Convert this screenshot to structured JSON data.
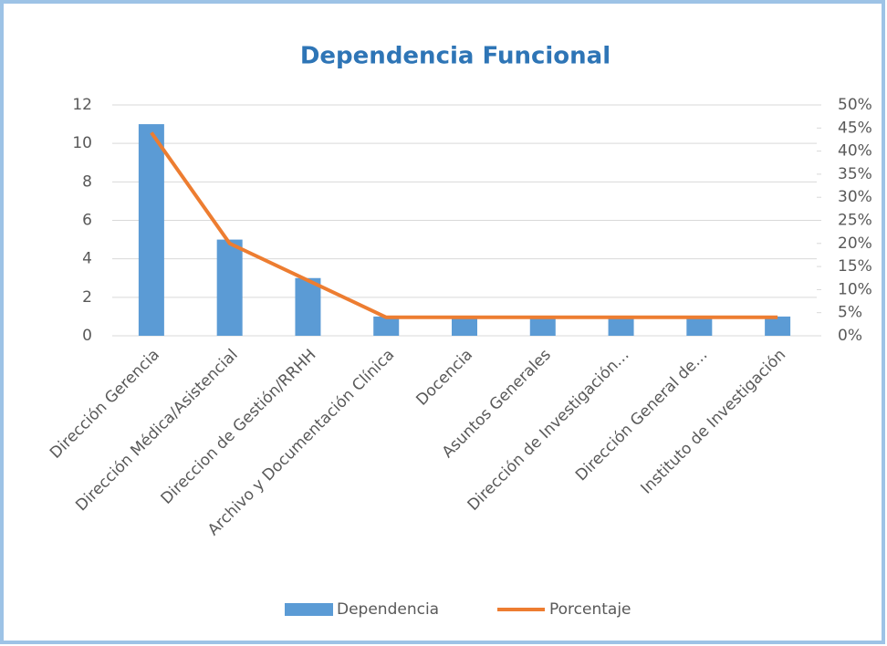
{
  "chart_data": {
    "type": "bar",
    "title": "Dependencia Funcional",
    "categories": [
      "Dirección Gerencia",
      "Dirección Médica/Asistencial",
      "Direccion de Gestión/RRHH",
      "Archivo y Documentación Clínica",
      "Docencia",
      "Asuntos Generales",
      "Dirección de Investigación…",
      "Dirección General de…",
      "Instituto de Investigación"
    ],
    "series": [
      {
        "name": "Dependencia",
        "type": "bar",
        "color": "#5b9bd5",
        "values": [
          11,
          5,
          3,
          1,
          1,
          1,
          1,
          1,
          1
        ]
      },
      {
        "name": "Porcentaje",
        "type": "line",
        "axis": "y2",
        "color": "#ed7d31",
        "values": [
          44,
          20,
          12,
          4,
          4,
          4,
          4,
          4,
          4
        ]
      }
    ],
    "ylim": [
      0,
      12
    ],
    "yticks": [
      0,
      2,
      4,
      6,
      8,
      10,
      12
    ],
    "y2lim": [
      0,
      50
    ],
    "y2ticks": [
      {
        "value": 0,
        "label": "0%"
      },
      {
        "value": 5,
        "label": "5%"
      },
      {
        "value": 10,
        "label": "10%"
      },
      {
        "value": 15,
        "label": "15%"
      },
      {
        "value": 20,
        "label": "20%"
      },
      {
        "value": 25,
        "label": "25%"
      },
      {
        "value": 30,
        "label": "30%"
      },
      {
        "value": 35,
        "label": "35%"
      },
      {
        "value": 40,
        "label": "40%"
      },
      {
        "value": 45,
        "label": "45%"
      },
      {
        "value": 50,
        "label": "50%"
      }
    ],
    "grid": true,
    "legend": "bottom"
  }
}
